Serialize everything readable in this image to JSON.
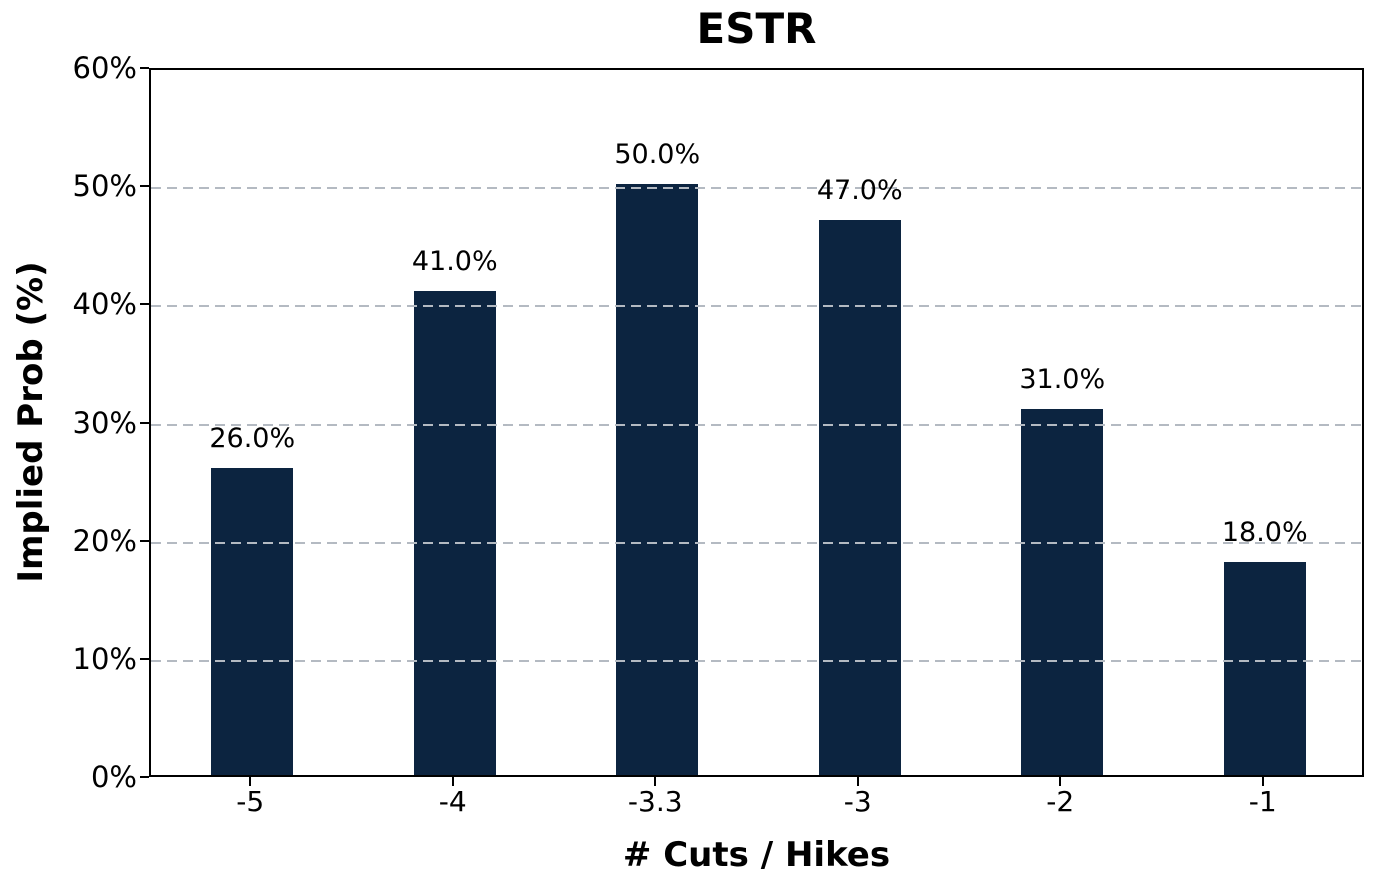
{
  "chart_data": {
    "type": "bar",
    "title": "ESTR",
    "xlabel": "# Cuts / Hikes",
    "ylabel": "Implied Prob (%)",
    "categories": [
      "-5",
      "-4",
      "-3.3",
      "-3",
      "-2",
      "-1"
    ],
    "values": [
      26,
      41,
      50,
      47,
      31,
      18
    ],
    "bar_labels": [
      "26.0%",
      "41.0%",
      "50.0%",
      "47.0%",
      "31.0%",
      "18.0%"
    ],
    "ylim": [
      0,
      60
    ],
    "yticks": [
      0,
      10,
      20,
      30,
      40,
      50,
      60
    ],
    "ytick_labels": [
      "0%",
      "10%",
      "20%",
      "30%",
      "40%",
      "50%",
      "60%"
    ],
    "grid": "horizontal-dashed",
    "grid_above_bars": true,
    "legend": "none",
    "bar_color": "#0c2440",
    "grid_color": "#b4bac2",
    "spine_color": "#000000",
    "text_color": "#000000"
  }
}
